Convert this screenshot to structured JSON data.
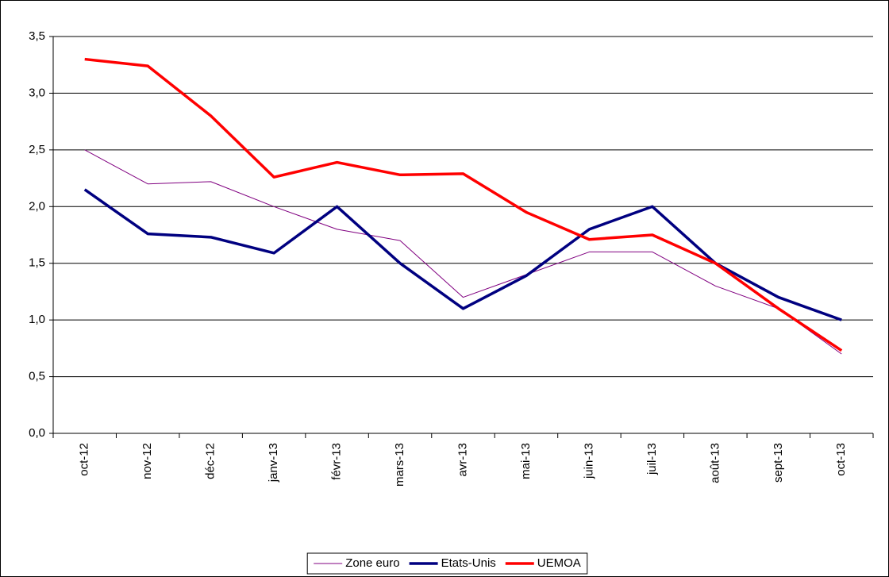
{
  "chart_data": {
    "type": "line",
    "categories": [
      "oct-12",
      "nov-12",
      "déc-12",
      "janv-13",
      "févr-13",
      "mars-13",
      "avr-13",
      "mai-13",
      "juin-13",
      "juil-13",
      "août-13",
      "sept-13",
      "oct-13"
    ],
    "series": [
      {
        "name": "Zone euro",
        "color": "#800080",
        "values": [
          2.5,
          2.2,
          2.22,
          2.0,
          1.8,
          1.7,
          1.2,
          1.4,
          1.6,
          1.6,
          1.3,
          1.1,
          0.7
        ]
      },
      {
        "name": "Etats-Unis",
        "color": "#000080",
        "values": [
          2.15,
          1.76,
          1.73,
          1.59,
          2.0,
          1.5,
          1.1,
          1.39,
          1.8,
          2.0,
          1.5,
          1.2,
          1.0
        ]
      },
      {
        "name": "UEMOA",
        "color": "#ff0000",
        "values": [
          3.3,
          3.24,
          2.8,
          2.26,
          2.39,
          2.28,
          2.29,
          1.95,
          1.71,
          1.75,
          1.5,
          1.1,
          0.73
        ]
      }
    ],
    "ylim": [
      0,
      3.5
    ],
    "yticks": [
      {
        "value": 0,
        "label": "0,0"
      },
      {
        "value": 0.5,
        "label": "0,5"
      },
      {
        "value": 1,
        "label": "1,0"
      },
      {
        "value": 1.5,
        "label": "1,5"
      },
      {
        "value": 2,
        "label": "2,0"
      },
      {
        "value": 2.5,
        "label": "2,5"
      },
      {
        "value": 3,
        "label": "3,0"
      },
      {
        "value": 3.5,
        "label": "3,5"
      }
    ],
    "grid": true,
    "legend": "bottom"
  }
}
